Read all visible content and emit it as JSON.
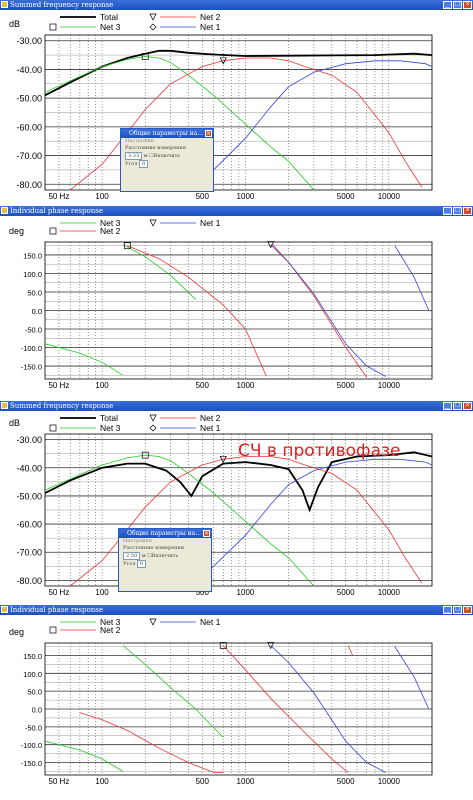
{
  "panels": [
    {
      "title": "Summed frequency response",
      "unit": "dB",
      "chart_data": {
        "type": "line",
        "xscale": "log",
        "xlim": [
          40,
          20000
        ],
        "ylim": [
          -82,
          -28
        ],
        "yticks": [
          -80,
          -70,
          -60,
          -50,
          -40,
          -30
        ],
        "ytick_labels": [
          "-80.00",
          "-70.00",
          "-60.00",
          "-50.00",
          "-40.00",
          "-30.00"
        ],
        "xticks": [
          50,
          100,
          500,
          1000,
          5000,
          10000
        ],
        "xtick_labels": [
          "50 Hz",
          "100",
          "500",
          "1000",
          "5000",
          "10000"
        ],
        "grid": true,
        "legend": [
          "Total",
          "Net 2",
          "Net 3",
          "Net 1"
        ],
        "series": [
          {
            "name": "Total",
            "color": "#000000",
            "x": [
              40,
              60,
              100,
              150,
              200,
              250,
              300,
              400,
              600,
              1000,
              2000,
              4000,
              8000,
              15000,
              20000
            ],
            "y": [
              -49,
              -44.5,
              -39,
              -36,
              -34.5,
              -33.5,
              -33.5,
              -34.2,
              -34.8,
              -35.3,
              -35.2,
              -35.1,
              -35,
              -34.5,
              -35
            ]
          },
          {
            "name": "Net 3",
            "color": "#22cc22",
            "x": [
              40,
              60,
              100,
              150,
              200,
              250,
              300,
              400,
              600,
              1000,
              1500,
              2000,
              3000
            ],
            "y": [
              -48,
              -44,
              -39,
              -36.5,
              -35.5,
              -36,
              -37.5,
              -42,
              -49,
              -59,
              -67,
              -72,
              -82
            ]
          },
          {
            "name": "Net 2",
            "color": "#ee3333",
            "x": [
              60,
              100,
              150,
              200,
              300,
              500,
              700,
              1000,
              1500,
              2000,
              2600,
              4000,
              6000,
              10000,
              13000,
              17000
            ],
            "y": [
              -82,
              -73,
              -62,
              -54,
              -45,
              -39,
              -37,
              -36,
              -36,
              -37,
              -39,
              -42,
              -48,
              -62,
              -72,
              -81
            ]
          },
          {
            "name": "Net 1",
            "color": "#3344dd",
            "x": [
              400,
              600,
              1000,
              1500,
              2000,
              3000,
              5000,
              8000,
              12000,
              18000,
              20000
            ],
            "y": [
              -82,
              -75,
              -64,
              -53,
              -46,
              -41,
              -38,
              -37,
              -37,
              -38,
              -39
            ]
          }
        ]
      },
      "dialog": {
        "title": "Общие параметры на...",
        "menu": "Настройки",
        "label": "Расстояние измерения",
        "value": "3.33",
        "unit": "м",
        "checkbox": "Включить",
        "angle_label": "Угол",
        "angle_value": "0"
      }
    },
    {
      "title": "Individual phase response",
      "unit": "deg",
      "chart_data": {
        "type": "line",
        "xscale": "log",
        "xlim": [
          40,
          20000
        ],
        "ylim": [
          -185,
          185
        ],
        "yticks": [
          -150,
          -100,
          -50,
          0,
          50,
          100,
          150
        ],
        "ytick_labels": [
          "-150.0",
          "-100.0",
          "-50.0",
          "0.0",
          "50.0",
          "100.0",
          "150.0"
        ],
        "xticks": [
          50,
          100,
          500,
          1000,
          5000,
          10000
        ],
        "xtick_labels": [
          "50 Hz",
          "100",
          "500",
          "1000",
          "5000",
          "10000"
        ],
        "grid": true,
        "legend": [
          "Net 3",
          "Net 2",
          "Net 1"
        ],
        "series": [
          {
            "name": "Net 3",
            "color": "#22cc22",
            "segments": [
              {
                "x": [
                  40,
                  70,
                  100,
                  140
                ],
                "y": [
                  -90,
                  -115,
                  -140,
                  -175
                ]
              },
              {
                "x": [
                  140,
                  200,
                  300,
                  450
                ],
                "y": [
                  178,
                  145,
                  95,
                  30
                ]
              }
            ]
          },
          {
            "name": "Net 2",
            "color": "#ee3333",
            "segments": [
              {
                "x": [
                  150,
                  250,
                  400,
                  700,
                  1000,
                  1400
                ],
                "y": [
                  175,
                  140,
                  90,
                  15,
                  -50,
                  -178
                ]
              },
              {
                "x": [
                  1550,
                  2000,
                  3000,
                  5000,
                  7000
                ],
                "y": [
                  178,
                  130,
                  40,
                  -100,
                  -180
                ]
              }
            ]
          },
          {
            "name": "Net 1",
            "color": "#3344dd",
            "segments": [
              {
                "x": [
                  1500,
                  2000,
                  3000,
                  5000,
                  7000,
                  9500
                ],
                "y": [
                  178,
                  130,
                  45,
                  -90,
                  -150,
                  -178
                ]
              },
              {
                "x": [
                  11000,
                  15000,
                  19000
                ],
                "y": [
                  175,
                  90,
                  0
                ]
              }
            ]
          }
        ]
      }
    },
    {
      "title": "Summed frequency response",
      "unit": "dB",
      "annotation": "СЧ в противофазе",
      "chart_data": {
        "type": "line",
        "xscale": "log",
        "xlim": [
          40,
          20000
        ],
        "ylim": [
          -82,
          -28
        ],
        "yticks": [
          -80,
          -70,
          -60,
          -50,
          -40,
          -30
        ],
        "ytick_labels": [
          "-80.00",
          "-70.00",
          "-60.00",
          "-50.00",
          "-40.00",
          "-30.00"
        ],
        "xticks": [
          50,
          100,
          500,
          1000,
          5000,
          10000
        ],
        "xtick_labels": [
          "50 Hz",
          "100",
          "500",
          "1000",
          "5000",
          "10000"
        ],
        "grid": true,
        "legend": [
          "Total",
          "Net 2",
          "Net 3",
          "Net 1"
        ],
        "series": [
          {
            "name": "Total",
            "color": "#000000",
            "x": [
              40,
              60,
              100,
              150,
              200,
              280,
              350,
              420,
              500,
              700,
              1000,
              1500,
              2000,
              2500,
              2800,
              3200,
              4000,
              6000,
              10000,
              15000,
              20000
            ],
            "y": [
              -49,
              -44.5,
              -40,
              -38.5,
              -38.5,
              -41,
              -45,
              -50,
              -43,
              -38.5,
              -38,
              -39,
              -40.5,
              -48,
              -55,
              -47,
              -38,
              -36,
              -35.5,
              -34.5,
              -36
            ]
          },
          {
            "name": "Net 3",
            "color": "#22cc22",
            "x": [
              40,
              60,
              100,
              150,
              200,
              250,
              300,
              400,
              600,
              1000,
              1500,
              2000,
              3000
            ],
            "y": [
              -48,
              -44,
              -39,
              -36.5,
              -35.5,
              -36,
              -37.5,
              -42,
              -49,
              -59,
              -67,
              -72,
              -82
            ]
          },
          {
            "name": "Net 2",
            "color": "#ee3333",
            "x": [
              60,
              100,
              150,
              200,
              300,
              500,
              700,
              1000,
              1500,
              2000,
              2600,
              4000,
              6000,
              10000,
              13000,
              17000
            ],
            "y": [
              -82,
              -73,
              -62,
              -54,
              -45,
              -39,
              -37,
              -36,
              -36,
              -37,
              -39,
              -42,
              -48,
              -62,
              -72,
              -81
            ]
          },
          {
            "name": "Net 1",
            "color": "#3344dd",
            "x": [
              400,
              600,
              1000,
              1500,
              2000,
              3000,
              5000,
              8000,
              12000,
              18000,
              20000
            ],
            "y": [
              -82,
              -75,
              -64,
              -53,
              -46,
              -41,
              -38,
              -37,
              -37,
              -38,
              -39
            ]
          }
        ]
      },
      "dialog": {
        "title": "Общие параметры на...",
        "menu": "Настройки",
        "label": "Расстояние измерения",
        "value": "2.50",
        "unit": "м",
        "checkbox": "Включить",
        "angle_label": "Угол",
        "angle_value": "0"
      }
    },
    {
      "title": "Individual phase response",
      "unit": "deg",
      "chart_data": {
        "type": "line",
        "xscale": "log",
        "xlim": [
          40,
          20000
        ],
        "ylim": [
          -185,
          185
        ],
        "yticks": [
          -150,
          -100,
          -50,
          0,
          50,
          100,
          150
        ],
        "ytick_labels": [
          "-150.0",
          "-100.0",
          "-50.0",
          "0.0",
          "50.0",
          "100.0",
          "150.0"
        ],
        "xticks": [
          50,
          100,
          500,
          1000,
          5000,
          10000
        ],
        "xtick_labels": [
          "50 Hz",
          "100",
          "500",
          "1000",
          "5000",
          "10000"
        ],
        "grid": true,
        "legend": [
          "Net 3",
          "Net 2",
          "Net 1"
        ],
        "series": [
          {
            "name": "Net 3",
            "color": "#22cc22",
            "segments": [
              {
                "x": [
                  40,
                  70,
                  100,
                  140
                ],
                "y": [
                  -90,
                  -115,
                  -140,
                  -175
                ]
              },
              {
                "x": [
                  140,
                  200,
                  300,
                  450,
                  700
                ],
                "y": [
                  178,
                  125,
                  60,
                  0,
                  -80
                ]
              }
            ]
          },
          {
            "name": "Net 2",
            "color": "#ee3333",
            "segments": [
              {
                "x": [
                  70,
                  100,
                  150,
                  250,
                  400,
                  600,
                  700
                ],
                "y": [
                  -10,
                  -30,
                  -60,
                  -110,
                  -150,
                  -178,
                  -178
                ]
              },
              {
                "x": [
                  700,
                  1000,
                  1500,
                  2500,
                  4000,
                  5200
                ],
                "y": [
                  178,
                  110,
                  30,
                  -60,
                  -140,
                  -178
                ]
              },
              {
                "x": [
                  5200,
                  5600
                ],
                "y": [
                  178,
                  150
                ]
              }
            ]
          },
          {
            "name": "Net 1",
            "color": "#3344dd",
            "segments": [
              {
                "x": [
                  1500,
                  2000,
                  3000,
                  5000,
                  7000,
                  9500
                ],
                "y": [
                  178,
                  130,
                  45,
                  -90,
                  -150,
                  -178
                ]
              },
              {
                "x": [
                  11000,
                  15000,
                  19000
                ],
                "y": [
                  175,
                  90,
                  0
                ]
              }
            ]
          }
        ]
      }
    }
  ]
}
